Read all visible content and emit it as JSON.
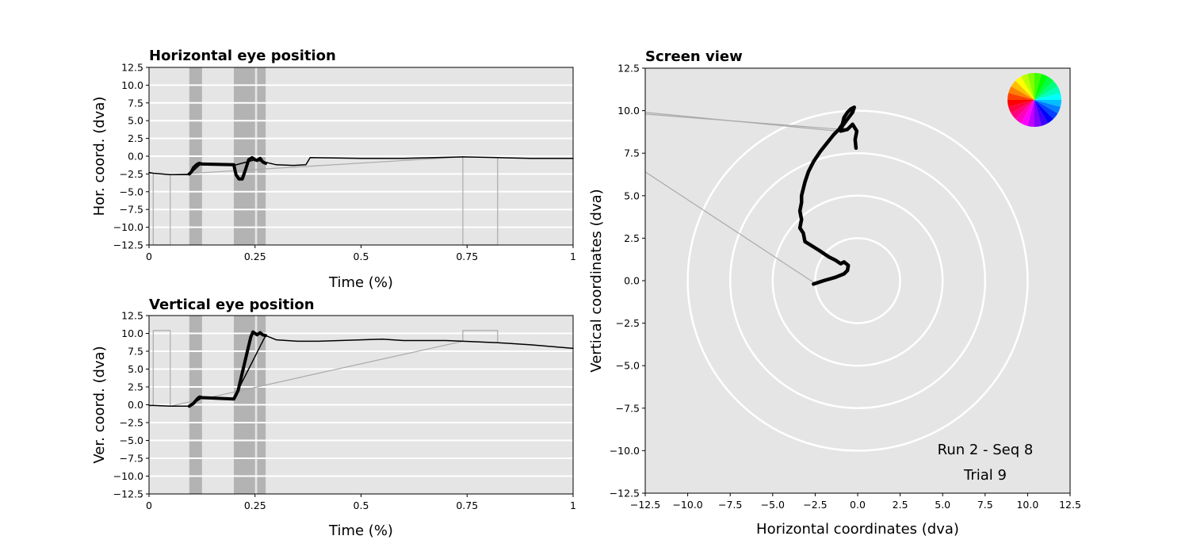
{
  "chart_data": [
    {
      "type": "line",
      "title": "Horizontal eye position",
      "xlabel": "Time (%)",
      "ylabel": "Hor. coord. (dva)",
      "xlim": [
        0,
        1
      ],
      "ylim": [
        -12.5,
        12.5
      ],
      "xticks": [
        "0",
        "0.25",
        "0.5",
        "0.75",
        "1"
      ],
      "yticks": [
        "12.5",
        "10.0",
        "7.5",
        "5.0",
        "2.5",
        "0.0",
        "−2.5",
        "−5.0",
        "−7.5",
        "−10.0",
        "−12.5"
      ],
      "grid": "horizontal",
      "shaded_intervals": [
        [
          0.095,
          0.125
        ],
        [
          0.2,
          0.25
        ],
        [
          0.255,
          0.275
        ]
      ],
      "series": [
        {
          "role": "blink/raw trace (light grey)",
          "points": [
            [
              0.0,
              -2.4
            ],
            [
              0.01,
              -2.4
            ],
            [
              0.01,
              -12.5
            ],
            [
              0.05,
              -12.5
            ],
            [
              0.05,
              -2.6
            ],
            [
              0.74,
              -0.1
            ],
            [
              0.74,
              -12.5
            ],
            [
              0.822,
              -12.5
            ],
            [
              0.822,
              -0.2
            ]
          ]
        },
        {
          "role": "fixation trace (thin black)",
          "points": [
            [
              0.0,
              -2.3
            ],
            [
              0.01,
              -2.4
            ],
            [
              0.05,
              -2.6
            ],
            [
              0.095,
              -2.6
            ],
            [
              0.1,
              -2.3
            ],
            [
              0.12,
              -1.2
            ],
            [
              0.2,
              -1.3
            ],
            [
              0.25,
              -0.5
            ],
            [
              0.3,
              -1.2
            ],
            [
              0.34,
              -1.3
            ],
            [
              0.37,
              -1.2
            ],
            [
              0.38,
              -0.2
            ],
            [
              0.5,
              -0.3
            ],
            [
              0.6,
              -0.3
            ],
            [
              0.74,
              -0.1
            ],
            [
              0.822,
              -0.2
            ],
            [
              0.9,
              -0.3
            ],
            [
              1.0,
              -0.3
            ]
          ]
        },
        {
          "role": "saccade trace (thick black)",
          "points": [
            [
              0.095,
              -2.5
            ],
            [
              0.1,
              -2.2
            ],
            [
              0.105,
              -1.6
            ],
            [
              0.112,
              -1.2
            ],
            [
              0.118,
              -1.0
            ],
            [
              0.125,
              -1.1
            ],
            [
              0.2,
              -1.2
            ],
            [
              0.205,
              -2.6
            ],
            [
              0.212,
              -3.2
            ],
            [
              0.22,
              -3.2
            ],
            [
              0.228,
              -1.8
            ],
            [
              0.235,
              -0.5
            ],
            [
              0.243,
              -0.2
            ],
            [
              0.25,
              -0.5
            ],
            [
              0.255,
              -0.6
            ],
            [
              0.262,
              -0.3
            ],
            [
              0.268,
              -0.8
            ],
            [
              0.275,
              -1.0
            ]
          ]
        }
      ]
    },
    {
      "type": "line",
      "title": "Vertical eye position",
      "xlabel": "Time (%)",
      "ylabel": "Ver. coord. (dva)",
      "xlim": [
        0,
        1
      ],
      "ylim": [
        -12.5,
        12.5
      ],
      "xticks": [
        "0",
        "0.25",
        "0.5",
        "0.75",
        "1"
      ],
      "yticks": [
        "12.5",
        "10.0",
        "7.5",
        "5.0",
        "2.5",
        "0.0",
        "−2.5",
        "−5.0",
        "−7.5",
        "−10.0",
        "−12.5"
      ],
      "grid": "horizontal",
      "shaded_intervals": [
        [
          0.095,
          0.125
        ],
        [
          0.2,
          0.25
        ],
        [
          0.255,
          0.275
        ]
      ],
      "series": [
        {
          "role": "blink/raw trace (light grey)",
          "points": [
            [
              0.0,
              -0.1
            ],
            [
              0.01,
              -0.1
            ],
            [
              0.01,
              10.4
            ],
            [
              0.05,
              10.4
            ],
            [
              0.05,
              -0.2
            ],
            [
              0.74,
              8.9
            ],
            [
              0.74,
              10.4
            ],
            [
              0.822,
              10.4
            ],
            [
              0.822,
              8.7
            ]
          ]
        },
        {
          "role": "fixation trace (thin black)",
          "points": [
            [
              0.0,
              -0.1
            ],
            [
              0.01,
              -0.1
            ],
            [
              0.05,
              -0.2
            ],
            [
              0.095,
              -0.2
            ],
            [
              0.125,
              1.0
            ],
            [
              0.2,
              0.9
            ],
            [
              0.275,
              9.7
            ],
            [
              0.3,
              9.1
            ],
            [
              0.35,
              8.9
            ],
            [
              0.4,
              8.9
            ],
            [
              0.5,
              9.1
            ],
            [
              0.55,
              9.2
            ],
            [
              0.6,
              9.0
            ],
            [
              0.7,
              9.0
            ],
            [
              0.74,
              8.9
            ],
            [
              0.822,
              8.7
            ],
            [
              0.9,
              8.4
            ],
            [
              1.0,
              7.9
            ]
          ]
        },
        {
          "role": "saccade trace (thick black)",
          "points": [
            [
              0.095,
              -0.2
            ],
            [
              0.105,
              0.2
            ],
            [
              0.115,
              0.9
            ],
            [
              0.12,
              1.1
            ],
            [
              0.125,
              1.0
            ],
            [
              0.2,
              0.8
            ],
            [
              0.21,
              2.0
            ],
            [
              0.22,
              4.5
            ],
            [
              0.232,
              7.5
            ],
            [
              0.24,
              9.5
            ],
            [
              0.245,
              10.2
            ],
            [
              0.25,
              10.0
            ],
            [
              0.255,
              9.8
            ],
            [
              0.262,
              10.1
            ],
            [
              0.268,
              9.8
            ],
            [
              0.275,
              9.7
            ]
          ]
        }
      ]
    },
    {
      "type": "scatter",
      "title": "Screen view",
      "xlabel": "Horizontal coordinates (dva)",
      "ylabel": "Vertical coordinates (dva)",
      "xlim": [
        -12.5,
        12.5
      ],
      "ylim": [
        -12.5,
        12.5
      ],
      "xticks": [
        "−12.5",
        "−10.0",
        "−7.5",
        "−5.0",
        "−2.5",
        "0.0",
        "2.5",
        "5.0",
        "7.5",
        "10.0",
        "12.5"
      ],
      "yticks": [
        "12.5",
        "10.0",
        "7.5",
        "5.0",
        "2.5",
        "0.0",
        "−2.5",
        "−5.0",
        "−7.5",
        "−10.0",
        "−12.5"
      ],
      "grid": false,
      "ring_radii": [
        2.5,
        5,
        7.5,
        10
      ],
      "color_wheel": "top-right",
      "grey_lines": [
        [
          [
            -12.5,
            9.9
          ],
          [
            -1.2,
            8.8
          ]
        ],
        [
          [
            -12.5,
            9.8
          ],
          [
            -1.0,
            8.9
          ]
        ],
        [
          [
            -12.5,
            6.4
          ],
          [
            -2.6,
            -0.1
          ]
        ]
      ],
      "gaze_trace": [
        [
          -2.6,
          -0.2
        ],
        [
          -2.0,
          0.0
        ],
        [
          -1.3,
          0.2
        ],
        [
          -0.8,
          0.4
        ],
        [
          -0.6,
          0.6
        ],
        [
          -0.55,
          0.9
        ],
        [
          -0.8,
          1.1
        ],
        [
          -1.0,
          1.0
        ],
        [
          -1.3,
          1.2
        ],
        [
          -1.7,
          1.4
        ],
        [
          -2.3,
          1.8
        ],
        [
          -3.1,
          2.3
        ],
        [
          -3.2,
          2.8
        ],
        [
          -3.4,
          3.1
        ],
        [
          -3.3,
          3.6
        ],
        [
          -3.4,
          4.1
        ],
        [
          -3.3,
          4.6
        ],
        [
          -3.3,
          5.0
        ],
        [
          -3.1,
          5.8
        ],
        [
          -2.9,
          6.4
        ],
        [
          -2.6,
          7.0
        ],
        [
          -2.2,
          7.6
        ],
        [
          -1.8,
          8.1
        ],
        [
          -1.4,
          8.6
        ],
        [
          -1.1,
          8.9
        ],
        [
          -0.9,
          9.2
        ],
        [
          -0.8,
          9.6
        ],
        [
          -0.6,
          9.9
        ],
        [
          -0.4,
          10.1
        ],
        [
          -0.2,
          10.2
        ],
        [
          -0.3,
          9.9
        ],
        [
          -0.6,
          9.5
        ],
        [
          -0.9,
          9.1
        ],
        [
          -1.0,
          8.8
        ],
        [
          -0.6,
          8.9
        ],
        [
          -0.3,
          9.2
        ],
        [
          -0.05,
          8.8
        ],
        [
          -0.15,
          8.3
        ],
        [
          -0.1,
          7.8
        ]
      ],
      "annotations": [
        "Run 2 - Seq 8",
        "Trial 9"
      ]
    }
  ]
}
